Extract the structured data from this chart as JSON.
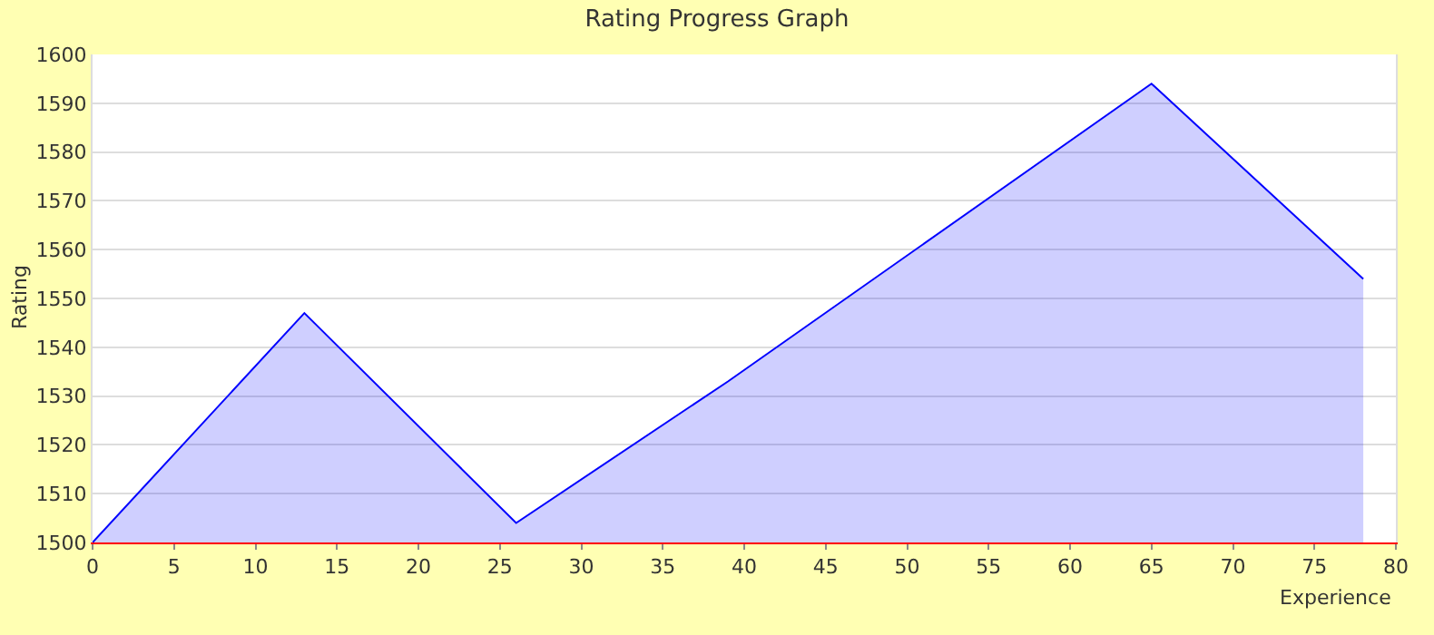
{
  "chart_data": {
    "type": "area",
    "title": "Rating Progress Graph",
    "xlabel": "Experience",
    "ylabel": "Rating",
    "x": [
      0,
      13,
      26,
      39,
      65,
      78
    ],
    "series": [
      {
        "color": "#0000ff",
        "values": [
          1500,
          1547,
          1504,
          1533,
          1594,
          1554
        ]
      }
    ],
    "xlim": [
      0,
      80
    ],
    "xticks": [
      0,
      5,
      10,
      15,
      20,
      25,
      30,
      35,
      40,
      45,
      50,
      55,
      60,
      65,
      70,
      75,
      80
    ],
    "ylim": [
      1500,
      1600
    ],
    "yticks": [
      1500,
      1510,
      1520,
      1530,
      1540,
      1550,
      1560,
      1570,
      1580,
      1590,
      1600
    ],
    "grid": "y",
    "legend": false,
    "marker": "none"
  }
}
